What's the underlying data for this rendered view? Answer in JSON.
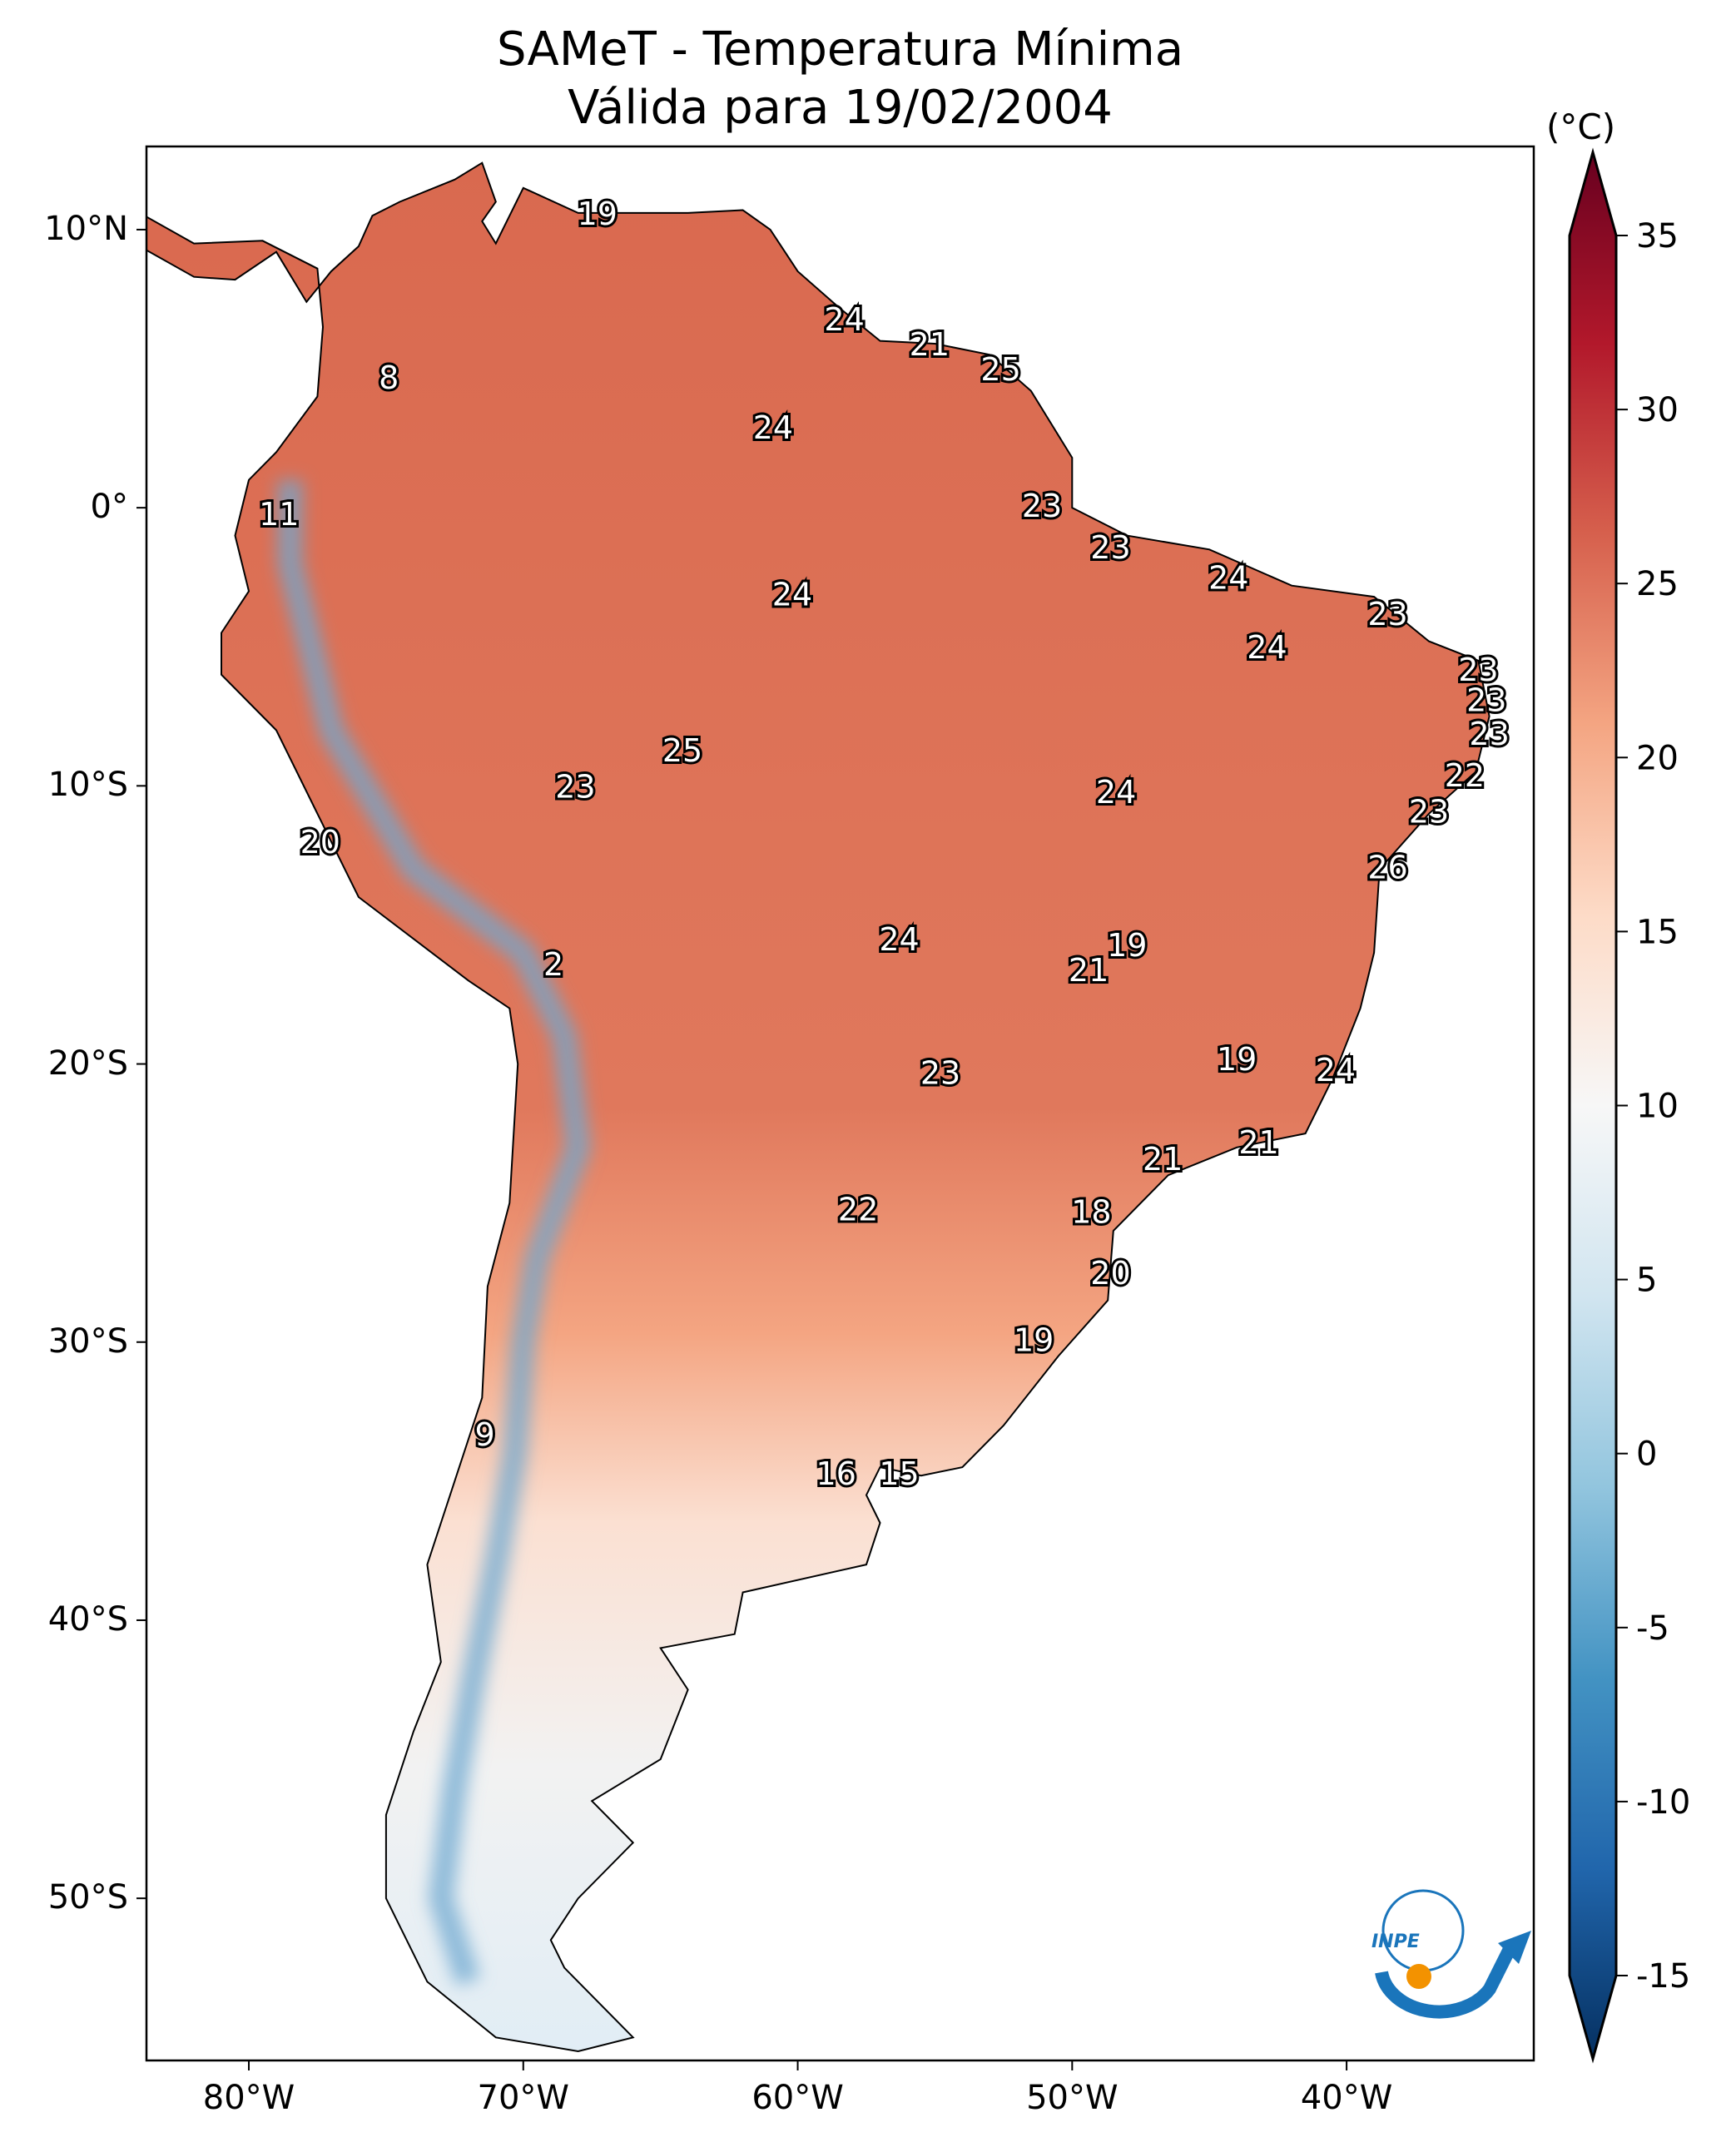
{
  "title": "SAMeT - Temperatura Mínima",
  "subtitle": "Válida para 19/02/2004",
  "colorbar": {
    "unit": "(°C)",
    "range": [
      -15,
      35
    ],
    "extend": "both",
    "colormap": "RdBu_r",
    "ticks": [
      "35",
      "30",
      "25",
      "20",
      "15",
      "10",
      "5",
      "0",
      "-5",
      "-10",
      "-15"
    ],
    "tick_values": [
      35,
      30,
      25,
      20,
      15,
      10,
      5,
      0,
      -5,
      -10,
      -15
    ],
    "colors": [
      "#053061",
      "#2166ac",
      "#4393c3",
      "#92c5de",
      "#d1e5f0",
      "#f7f7f7",
      "#fddbc7",
      "#f4a582",
      "#d6604d",
      "#b2182b",
      "#67001f"
    ]
  },
  "axes": {
    "lon_range": [
      -83.73,
      -33.18
    ],
    "lat_range": [
      -55.83,
      12.99
    ],
    "lon_ticks": [
      {
        "v": -80,
        "label": "80°W"
      },
      {
        "v": -70,
        "label": "70°W"
      },
      {
        "v": -60,
        "label": "60°W"
      },
      {
        "v": -50,
        "label": "50°W"
      },
      {
        "v": -40,
        "label": "40°W"
      }
    ],
    "lat_ticks": [
      {
        "v": 10,
        "label": "10°N"
      },
      {
        "v": 0,
        "label": "0°"
      },
      {
        "v": -10,
        "label": "10°S"
      },
      {
        "v": -20,
        "label": "20°S"
      },
      {
        "v": -30,
        "label": "30°S"
      },
      {
        "v": -40,
        "label": "40°S"
      },
      {
        "v": -50,
        "label": "50°S"
      }
    ]
  },
  "stations": [
    {
      "lon": -67.3,
      "lat": 10.6,
      "value": "19"
    },
    {
      "lon": -74.9,
      "lat": 4.7,
      "value": "8"
    },
    {
      "lon": -58.3,
      "lat": 6.8,
      "value": "24"
    },
    {
      "lon": -55.2,
      "lat": 5.9,
      "value": "21"
    },
    {
      "lon": -52.6,
      "lat": 5.0,
      "value": "25"
    },
    {
      "lon": -60.9,
      "lat": 2.9,
      "value": "24"
    },
    {
      "lon": -78.9,
      "lat": -0.2,
      "value": "11"
    },
    {
      "lon": -51.1,
      "lat": 0.1,
      "value": "23"
    },
    {
      "lon": -48.6,
      "lat": -1.4,
      "value": "23"
    },
    {
      "lon": -60.2,
      "lat": -3.1,
      "value": "24"
    },
    {
      "lon": -44.3,
      "lat": -2.5,
      "value": "24"
    },
    {
      "lon": -38.5,
      "lat": -3.8,
      "value": "23"
    },
    {
      "lon": -42.9,
      "lat": -5.0,
      "value": "24"
    },
    {
      "lon": -35.2,
      "lat": -5.8,
      "value": "23"
    },
    {
      "lon": -34.9,
      "lat": -6.9,
      "value": "23"
    },
    {
      "lon": -34.8,
      "lat": -8.1,
      "value": "23"
    },
    {
      "lon": -64.2,
      "lat": -8.7,
      "value": "25"
    },
    {
      "lon": -35.7,
      "lat": -9.6,
      "value": "22"
    },
    {
      "lon": -68.1,
      "lat": -10.0,
      "value": "23"
    },
    {
      "lon": -48.4,
      "lat": -10.2,
      "value": "24"
    },
    {
      "lon": -37.0,
      "lat": -10.9,
      "value": "23"
    },
    {
      "lon": -77.4,
      "lat": -12.0,
      "value": "20"
    },
    {
      "lon": -38.5,
      "lat": -12.9,
      "value": "26"
    },
    {
      "lon": -56.3,
      "lat": -15.5,
      "value": "24"
    },
    {
      "lon": -48.0,
      "lat": -15.7,
      "value": "19"
    },
    {
      "lon": -68.9,
      "lat": -16.4,
      "value": "2"
    },
    {
      "lon": -49.4,
      "lat": -16.6,
      "value": "21"
    },
    {
      "lon": -44.0,
      "lat": -19.8,
      "value": "19"
    },
    {
      "lon": -40.4,
      "lat": -20.2,
      "value": "24"
    },
    {
      "lon": -54.8,
      "lat": -20.3,
      "value": "23"
    },
    {
      "lon": -43.2,
      "lat": -22.8,
      "value": "21"
    },
    {
      "lon": -46.7,
      "lat": -23.4,
      "value": "21"
    },
    {
      "lon": -57.8,
      "lat": -25.2,
      "value": "22"
    },
    {
      "lon": -49.3,
      "lat": -25.3,
      "value": "18"
    },
    {
      "lon": -48.6,
      "lat": -27.5,
      "value": "20"
    },
    {
      "lon": -51.4,
      "lat": -29.9,
      "value": "19"
    },
    {
      "lon": -71.4,
      "lat": -33.3,
      "value": "9"
    },
    {
      "lon": -58.6,
      "lat": -34.7,
      "value": "16"
    },
    {
      "lon": -56.3,
      "lat": -34.7,
      "value": "15"
    }
  ],
  "logo": {
    "text": "INPE",
    "colors": [
      "#1a75bb",
      "#f39200"
    ]
  }
}
